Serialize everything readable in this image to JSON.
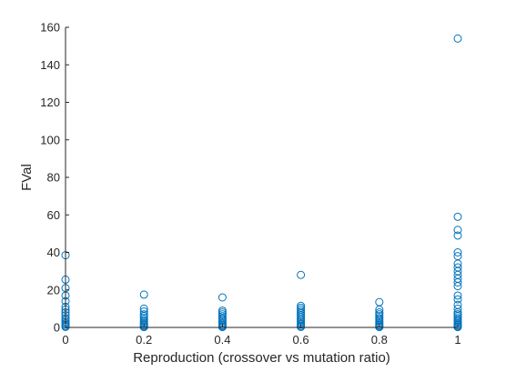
{
  "chart_data": {
    "type": "scatter",
    "title": "",
    "xlabel": "Reproduction (crossover vs mutation ratio)",
    "ylabel": "FVal",
    "xlim": [
      0,
      1
    ],
    "ylim": [
      0,
      160
    ],
    "x_ticks": [
      0,
      0.2,
      0.4,
      0.6,
      0.8,
      1
    ],
    "x_tick_labels": [
      "0",
      "0.2",
      "0.4",
      "0.6",
      "0.8",
      "1"
    ],
    "y_ticks": [
      0,
      20,
      40,
      60,
      80,
      100,
      120,
      140,
      160
    ],
    "y_tick_labels": [
      "0",
      "20",
      "40",
      "60",
      "80",
      "100",
      "120",
      "140",
      "160"
    ],
    "grid": false,
    "box": false,
    "marker": "circle-open",
    "color": "#0072BD",
    "series": [
      {
        "points": [
          [
            0,
            38.5
          ],
          [
            0,
            25.5
          ],
          [
            0,
            21
          ],
          [
            0,
            17
          ],
          [
            0,
            14
          ],
          [
            0,
            11
          ],
          [
            0,
            9.5
          ],
          [
            0,
            8
          ],
          [
            0,
            6.5
          ],
          [
            0,
            5
          ],
          [
            0,
            4
          ],
          [
            0,
            3
          ],
          [
            0,
            2.2
          ],
          [
            0,
            1.5
          ],
          [
            0,
            0.8
          ],
          [
            0,
            0.3
          ],
          [
            0.2,
            17.5
          ],
          [
            0.2,
            10
          ],
          [
            0.2,
            8.5
          ],
          [
            0.2,
            7
          ],
          [
            0.2,
            6
          ],
          [
            0.2,
            5
          ],
          [
            0.2,
            4
          ],
          [
            0.2,
            3.2
          ],
          [
            0.2,
            2.5
          ],
          [
            0.2,
            1.8
          ],
          [
            0.2,
            1.2
          ],
          [
            0.2,
            0.6
          ],
          [
            0.2,
            0.2
          ],
          [
            0.4,
            16
          ],
          [
            0.4,
            9
          ],
          [
            0.4,
            8
          ],
          [
            0.4,
            7
          ],
          [
            0.4,
            6
          ],
          [
            0.4,
            5
          ],
          [
            0.4,
            4.2
          ],
          [
            0.4,
            3.4
          ],
          [
            0.4,
            2.6
          ],
          [
            0.4,
            1.9
          ],
          [
            0.4,
            1.2
          ],
          [
            0.4,
            0.6
          ],
          [
            0.4,
            0.2
          ],
          [
            0.6,
            28
          ],
          [
            0.6,
            11.5
          ],
          [
            0.6,
            10.5
          ],
          [
            0.6,
            9.5
          ],
          [
            0.6,
            8.5
          ],
          [
            0.6,
            7.5
          ],
          [
            0.6,
            6.5
          ],
          [
            0.6,
            5.5
          ],
          [
            0.6,
            4.6
          ],
          [
            0.6,
            3.8
          ],
          [
            0.6,
            3
          ],
          [
            0.6,
            2.2
          ],
          [
            0.6,
            1.5
          ],
          [
            0.6,
            0.8
          ],
          [
            0.6,
            0.3
          ],
          [
            0.8,
            13.5
          ],
          [
            0.8,
            9.5
          ],
          [
            0.8,
            8
          ],
          [
            0.8,
            7
          ],
          [
            0.8,
            6
          ],
          [
            0.8,
            5
          ],
          [
            0.8,
            4.2
          ],
          [
            0.8,
            3.4
          ],
          [
            0.8,
            2.6
          ],
          [
            0.8,
            1.9
          ],
          [
            0.8,
            1.2
          ],
          [
            0.8,
            0.6
          ],
          [
            0.8,
            0.2
          ],
          [
            1,
            154
          ],
          [
            1,
            59
          ],
          [
            1,
            52
          ],
          [
            1,
            49
          ],
          [
            1,
            40
          ],
          [
            1,
            38
          ],
          [
            1,
            34
          ],
          [
            1,
            32
          ],
          [
            1,
            30
          ],
          [
            1,
            28
          ],
          [
            1,
            26
          ],
          [
            1,
            24
          ],
          [
            1,
            22
          ],
          [
            1,
            17
          ],
          [
            1,
            15
          ],
          [
            1,
            12
          ],
          [
            1,
            10
          ],
          [
            1,
            8
          ],
          [
            1,
            7
          ],
          [
            1,
            6
          ],
          [
            1,
            5
          ],
          [
            1,
            4
          ],
          [
            1,
            3.2
          ],
          [
            1,
            2.5
          ],
          [
            1,
            1.8
          ],
          [
            1,
            1.2
          ],
          [
            1,
            0.6
          ],
          [
            1,
            0.2
          ]
        ]
      }
    ]
  }
}
